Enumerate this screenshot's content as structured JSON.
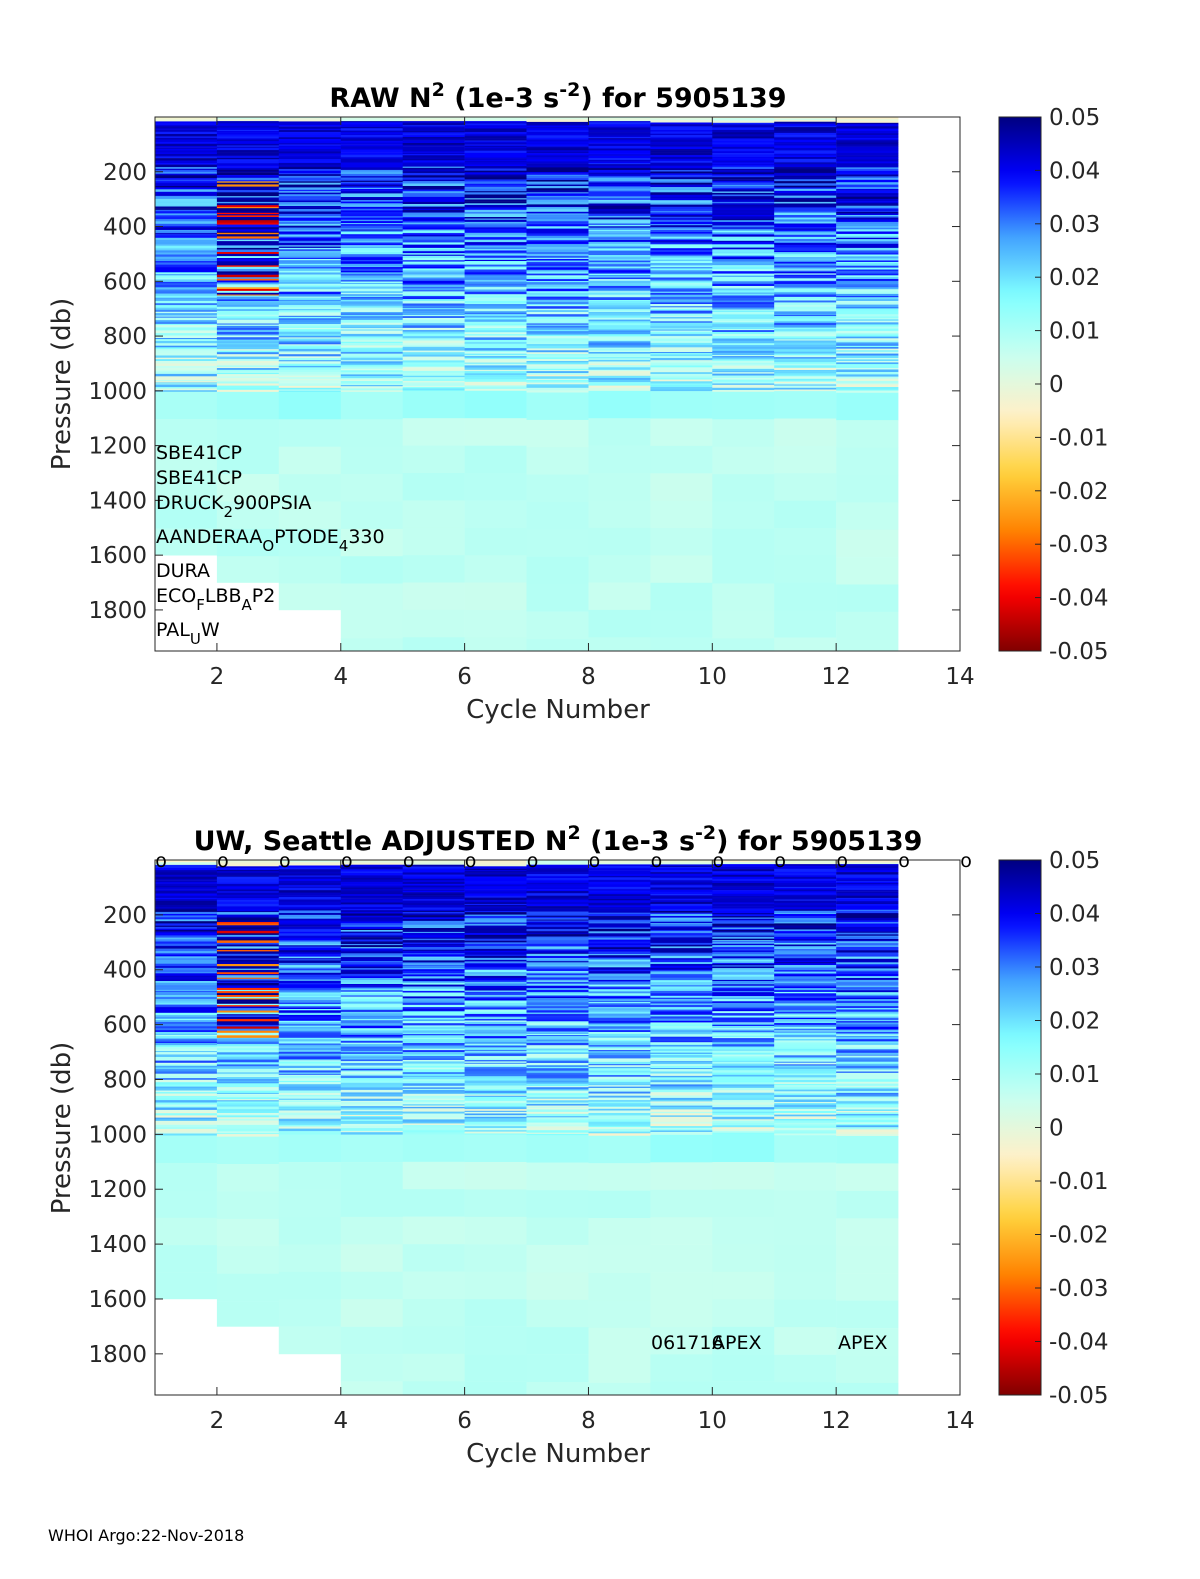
{
  "footer": "WHOI Argo:22-Nov-2018",
  "colormap": [
    "#800000",
    "#ff0000",
    "#ff8000",
    "#ffd23c",
    "#fff0c8",
    "#c8fff0",
    "#80ffff",
    "#40a0ff",
    "#0000ff",
    "#000080"
  ],
  "chart_data": [
    {
      "type": "heatmap",
      "title_parts": [
        "RAW N",
        "2",
        " (1e-3 s",
        "-2",
        ") for 5905139"
      ],
      "xlabel": "Cycle Number",
      "ylabel": "Pressure (db)",
      "xlim": [
        1,
        14
      ],
      "ylim": [
        1950,
        0
      ],
      "xticks": [
        "2",
        "4",
        "6",
        "8",
        "10",
        "12",
        "14"
      ],
      "yticks": [
        "200",
        "400",
        "600",
        "800",
        "1000",
        "1200",
        "1400",
        "1600",
        "1800"
      ],
      "colorbar": {
        "range": [
          -0.05,
          0.05
        ],
        "ticks": [
          "0.05",
          "0.04",
          "0.03",
          "0.02",
          "0.01",
          "0",
          "-0.01",
          "-0.02",
          "-0.03",
          "-0.04",
          "-0.05"
        ]
      },
      "cycles": [
        1,
        2,
        3,
        4,
        5,
        6,
        7,
        8,
        9,
        10,
        11,
        12
      ],
      "max_pressure": [
        1600,
        1700,
        1800,
        1950,
        1950,
        1950,
        1950,
        1950,
        1950,
        1950,
        1950,
        1950
      ],
      "sensor_labels": [
        {
          "parts": [
            "SBE41CP"
          ]
        },
        {
          "parts": [
            "SBE41CP"
          ]
        },
        {
          "parts": [
            "DRUCK",
            "2",
            "900PSIA"
          ],
          "sub": [
            1
          ]
        },
        {
          "parts": [
            "AANDERAA",
            "O",
            "PTODE",
            "4",
            "330"
          ],
          "sub": [
            1,
            3
          ]
        },
        {
          "parts": [
            "DURA"
          ]
        },
        {
          "parts": [
            "ECO",
            "F",
            "LBB",
            "A",
            "P2"
          ],
          "sub": [
            1,
            3
          ]
        },
        {
          "parts": [
            "PAL",
            "U",
            "W"
          ],
          "sub": [
            1
          ]
        }
      ]
    },
    {
      "type": "heatmap",
      "title_parts": [
        "UW, Seattle  ADJUSTED N",
        "2",
        " (1e-3 s",
        "-2",
        ") for 5905139"
      ],
      "xlabel": "Cycle Number",
      "ylabel": "Pressure (db)",
      "xlim": [
        1,
        14
      ],
      "ylim": [
        1950,
        0
      ],
      "xticks": [
        "2",
        "4",
        "6",
        "8",
        "10",
        "12",
        "14"
      ],
      "yticks": [
        "200",
        "400",
        "600",
        "800",
        "1000",
        "1200",
        "1400",
        "1600",
        "1800"
      ],
      "colorbar": {
        "range": [
          -0.05,
          0.05
        ],
        "ticks": [
          "0.05",
          "0.04",
          "0.03",
          "0.02",
          "0.01",
          "0",
          "-0.01",
          "-0.02",
          "-0.03",
          "-0.04",
          "-0.05"
        ]
      },
      "cycles": [
        1,
        2,
        3,
        4,
        5,
        6,
        7,
        8,
        9,
        10,
        11,
        12
      ],
      "max_pressure": [
        1600,
        1700,
        1800,
        1950,
        1950,
        1950,
        1950,
        1950,
        1950,
        1950,
        1950,
        1950
      ],
      "top_marker": "o",
      "marker_cycles": [
        1,
        2,
        3,
        4,
        5,
        6,
        7,
        8,
        9,
        10,
        11,
        12,
        13,
        14
      ],
      "annotations": [
        "061716",
        "APEX",
        "APEX"
      ]
    }
  ]
}
